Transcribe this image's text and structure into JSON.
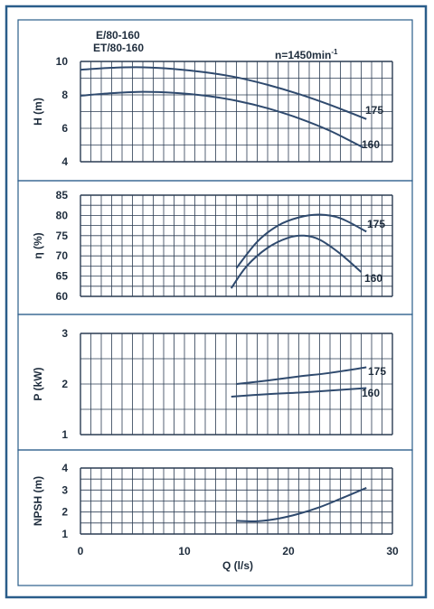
{
  "header": {
    "model_line_1": "E/80-160",
    "model_line_2": "ET/80-160",
    "speed_label": "n=1450min",
    "speed_superscript": "-1"
  },
  "x_axis": {
    "label": "Q (l/s)",
    "range": [
      0,
      30
    ],
    "ticks": [
      0,
      10,
      20,
      30
    ],
    "tick_labels": [
      "0",
      "10",
      "20",
      "30"
    ]
  },
  "colors": {
    "frame": "#2a5d8a",
    "grid": "#2a3b52",
    "curve": "#2f4a6e",
    "text": "#1f2d3d",
    "background": "#ffffff"
  },
  "chart_data": [
    {
      "type": "line",
      "id": "head",
      "ylabel": "H (m)",
      "ylim": [
        4,
        10
      ],
      "yticks": [
        4,
        6,
        8,
        10
      ],
      "ytick_labels": [
        "4",
        "6",
        "8",
        "10"
      ],
      "xlim": [
        0,
        30
      ],
      "grid": true,
      "series": [
        {
          "name": "175",
          "x": [
            0,
            3,
            6,
            9,
            12,
            15,
            18,
            21,
            24,
            27.5
          ],
          "y": [
            9.5,
            9.62,
            9.65,
            9.55,
            9.35,
            9.05,
            8.6,
            8.05,
            7.4,
            6.55
          ]
        },
        {
          "name": "160",
          "x": [
            0,
            3,
            6,
            9,
            12,
            15,
            18,
            21,
            24,
            27.2
          ],
          "y": [
            7.95,
            8.1,
            8.18,
            8.12,
            7.95,
            7.65,
            7.2,
            6.6,
            5.85,
            4.85
          ]
        }
      ]
    },
    {
      "type": "line",
      "id": "efficiency",
      "ylabel": "η (%)",
      "ylim": [
        60,
        85
      ],
      "yticks": [
        60,
        65,
        70,
        75,
        80,
        85
      ],
      "ytick_labels": [
        "60",
        "65",
        "70",
        "75",
        "80",
        "85"
      ],
      "xlim": [
        0,
        30
      ],
      "grid": true,
      "series": [
        {
          "name": "175",
          "x": [
            15,
            17,
            19,
            21,
            23,
            25,
            27.5
          ],
          "y": [
            67,
            73.5,
            77.5,
            79.5,
            80.2,
            79.3,
            76
          ]
        },
        {
          "name": "160",
          "x": [
            14.5,
            16,
            18,
            20,
            21.5,
            23,
            25,
            27
          ],
          "y": [
            62,
            67.5,
            72,
            74.5,
            75,
            74,
            70.5,
            66
          ]
        }
      ]
    },
    {
      "type": "line",
      "id": "power",
      "ylabel": "P (kW)",
      "ylim": [
        1,
        3
      ],
      "yticks": [
        1,
        2,
        3
      ],
      "ytick_labels": [
        "1",
        "2",
        "3"
      ],
      "xlim": [
        0,
        30
      ],
      "grid": true,
      "series": [
        {
          "name": "175",
          "x": [
            15,
            18,
            21,
            24,
            27.5
          ],
          "y": [
            2.0,
            2.07,
            2.15,
            2.22,
            2.33
          ]
        },
        {
          "name": "160",
          "x": [
            14.5,
            18,
            21,
            24,
            27.5
          ],
          "y": [
            1.75,
            1.8,
            1.83,
            1.87,
            1.92
          ]
        }
      ]
    },
    {
      "type": "line",
      "id": "npsh",
      "ylabel": "NPSH (m)",
      "ylim": [
        1,
        4
      ],
      "yticks": [
        1,
        2,
        3,
        4
      ],
      "ytick_labels": [
        "1",
        "2",
        "3",
        "4"
      ],
      "xlim": [
        0,
        30
      ],
      "grid": true,
      "series": [
        {
          "name": "",
          "x": [
            15,
            17,
            19,
            21,
            23,
            25,
            27.5
          ],
          "y": [
            1.6,
            1.58,
            1.7,
            1.92,
            2.22,
            2.6,
            3.1
          ]
        }
      ]
    }
  ]
}
